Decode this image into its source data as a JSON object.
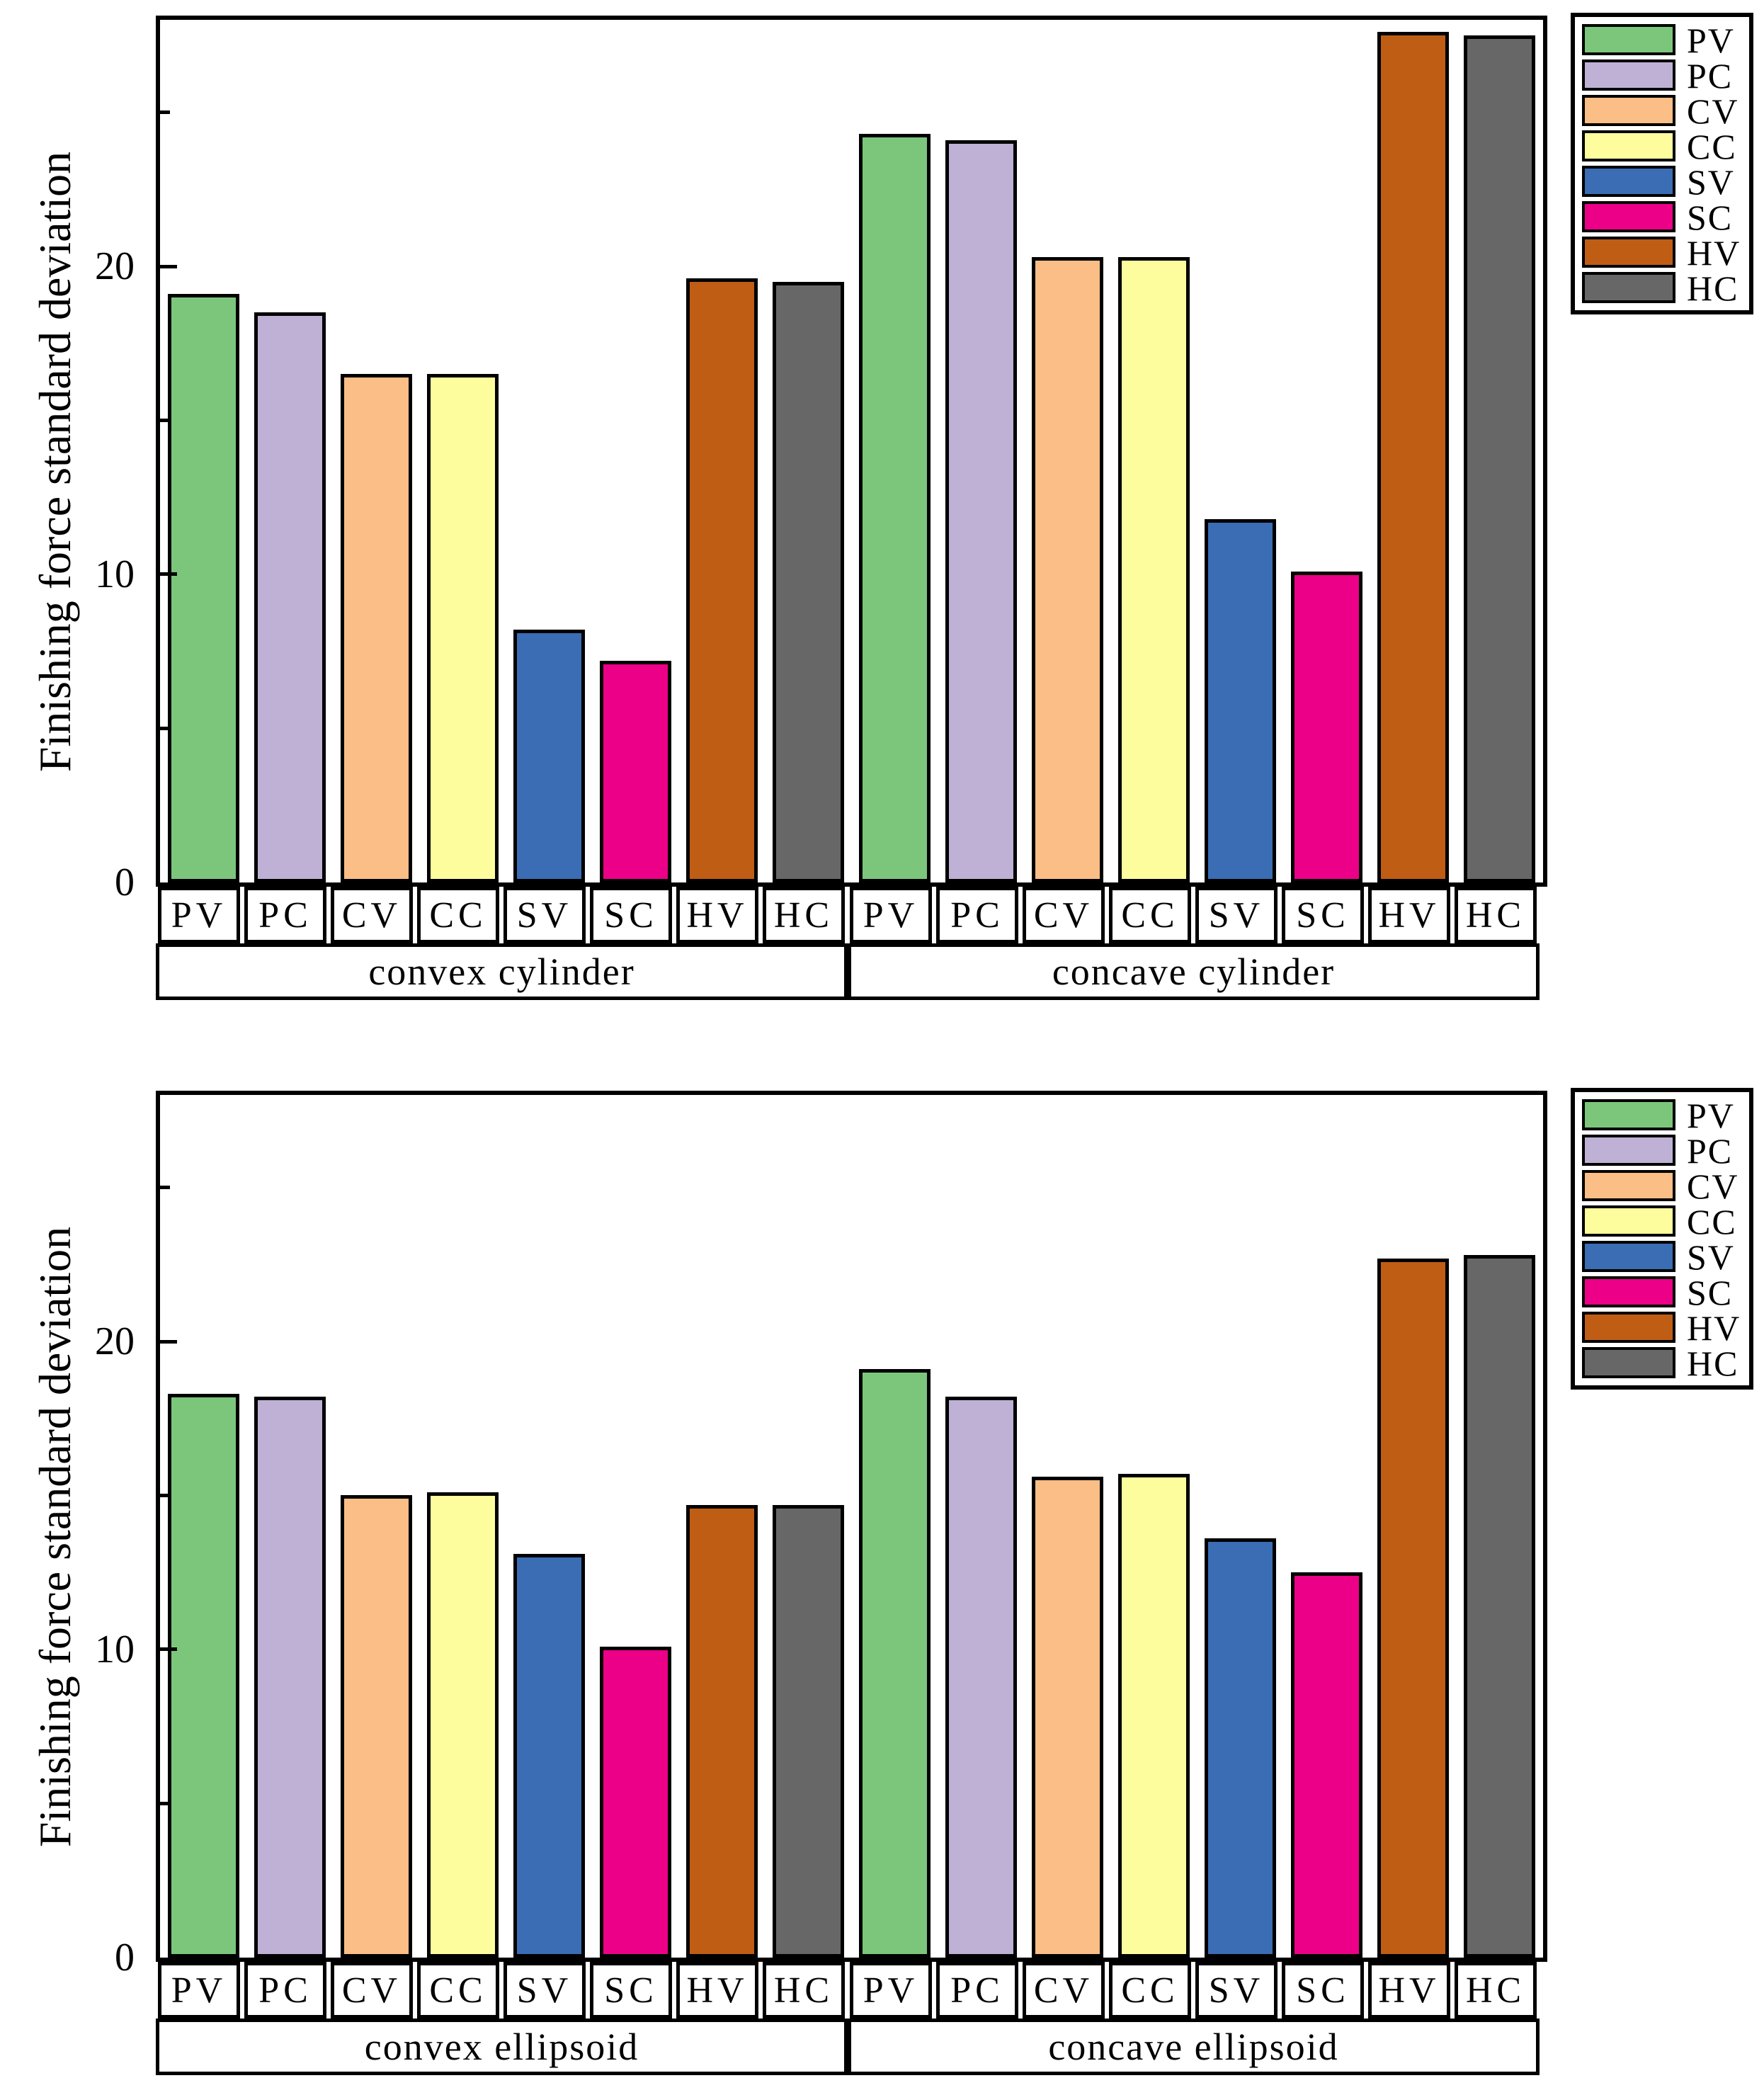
{
  "figure_title": "",
  "shared": {
    "ylabel": "Finishing force standard deviation",
    "ytick_labels": [
      "0",
      "10",
      "20"
    ],
    "categories": [
      "PV",
      "PC",
      "CV",
      "CC",
      "SV",
      "SC",
      "HV",
      "HC"
    ],
    "colors": {
      "PV": "#7cc67c",
      "PC": "#bfb1d5",
      "CV": "#fbbe86",
      "CC": "#fdfd9e",
      "SV": "#3a6db4",
      "SC": "#ec0087",
      "HV": "#bf5d15",
      "HC": "#676767"
    }
  },
  "chart_data": [
    {
      "type": "bar",
      "ylabel": "Finishing force standard deviation",
      "ylim": [
        0,
        28
      ],
      "yticks_labeled": [
        0,
        10,
        20
      ],
      "yticks_minor": [
        5,
        15,
        25
      ],
      "grid": false,
      "legend_position": "outside-top-right",
      "categories": [
        "PV",
        "PC",
        "CV",
        "CC",
        "SV",
        "SC",
        "HV",
        "HC"
      ],
      "groups": [
        {
          "label": "convex cylinder",
          "values": [
            19.1,
            18.5,
            16.5,
            16.5,
            8.2,
            7.2,
            19.6,
            19.5
          ]
        },
        {
          "label": "concave cylinder",
          "values": [
            24.3,
            24.1,
            20.3,
            20.3,
            11.8,
            10.1,
            27.6,
            27.5
          ]
        }
      ],
      "legend": [
        {
          "label": "PV",
          "color": "#7cc67c"
        },
        {
          "label": "PC",
          "color": "#bfb1d5"
        },
        {
          "label": "CV",
          "color": "#fbbe86"
        },
        {
          "label": "CC",
          "color": "#fdfd9e"
        },
        {
          "label": "SV",
          "color": "#3a6db4"
        },
        {
          "label": "SC",
          "color": "#ec0087"
        },
        {
          "label": "HV",
          "color": "#bf5d15"
        },
        {
          "label": "HC",
          "color": "#676767"
        }
      ]
    },
    {
      "type": "bar",
      "ylabel": "Finishing force standard deviation",
      "ylim": [
        0,
        28
      ],
      "yticks_labeled": [
        0,
        10,
        20
      ],
      "yticks_minor": [
        5,
        15,
        25
      ],
      "grid": false,
      "legend_position": "outside-top-right",
      "categories": [
        "PV",
        "PC",
        "CV",
        "CC",
        "SV",
        "SC",
        "HV",
        "HC"
      ],
      "groups": [
        {
          "label": "convex ellipsoid",
          "values": [
            18.3,
            18.2,
            15.0,
            15.1,
            13.1,
            10.1,
            14.7,
            14.7
          ]
        },
        {
          "label": "concave ellipsoid",
          "values": [
            19.1,
            18.2,
            15.6,
            15.7,
            13.6,
            12.5,
            22.7,
            22.8
          ]
        }
      ],
      "legend": [
        {
          "label": "PV",
          "color": "#7cc67c"
        },
        {
          "label": "PC",
          "color": "#bfb1d5"
        },
        {
          "label": "CV",
          "color": "#fbbe86"
        },
        {
          "label": "CC",
          "color": "#fdfd9e"
        },
        {
          "label": "SV",
          "color": "#3a6db4"
        },
        {
          "label": "SC",
          "color": "#ec0087"
        },
        {
          "label": "HV",
          "color": "#bf5d15"
        },
        {
          "label": "HC",
          "color": "#676767"
        }
      ]
    }
  ]
}
